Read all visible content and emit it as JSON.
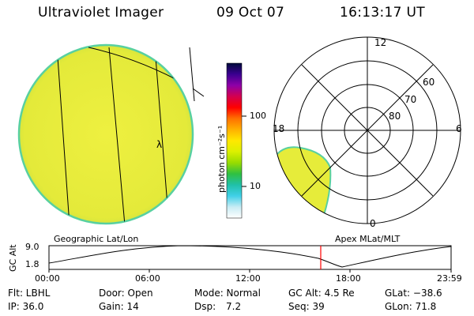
{
  "header": {
    "instrument": "Ultraviolet Imager",
    "date": "09 Oct 07",
    "time": "16:13:17 UT"
  },
  "colorbar": {
    "unit_label": "photon cm⁻²s⁻¹",
    "ticks": [
      "100",
      "10"
    ],
    "colors": [
      "#000a3a",
      "#3a0090",
      "#8e00a8",
      "#d20050",
      "#ff0000",
      "#ff7000",
      "#ffb000",
      "#ffe800",
      "#dcf000",
      "#98dc00",
      "#30c040",
      "#20c0a8",
      "#40d0e8",
      "#c8ecf4",
      "#ffffff"
    ]
  },
  "geo_panel": {
    "label": "Geographic Lat/Lon",
    "marker": "λ",
    "fill_color": "#e6ec3a"
  },
  "polar_panel": {
    "label": "Apex MLat/MLT",
    "lat_labels": [
      "60",
      "70",
      "80"
    ],
    "mlt_labels": {
      "top": "12",
      "left": "18",
      "right": "6",
      "bottom": "0"
    }
  },
  "timeline": {
    "axis_label": "GC Alt",
    "y_max": "9.0",
    "y_min": "1.8",
    "times": [
      "00:00",
      "06:00",
      "12:00",
      "18:00",
      "23:59"
    ],
    "marker_color": "#ff0000",
    "marker_time_hours": 16.22
  },
  "info": {
    "filter": "Flt: LBHL",
    "door": "Door: Open",
    "mode": "Mode: Normal",
    "gc_alt": "GC Alt: 4.5 Re",
    "glat": "GLat: −38.6",
    "ip": "IP: 36.0",
    "gain": "Gain: 14",
    "dsp_label": "Dsp:",
    "dsp_value": "7.2",
    "seq": "Seq: 39",
    "glon": "GLon:  71.8"
  }
}
